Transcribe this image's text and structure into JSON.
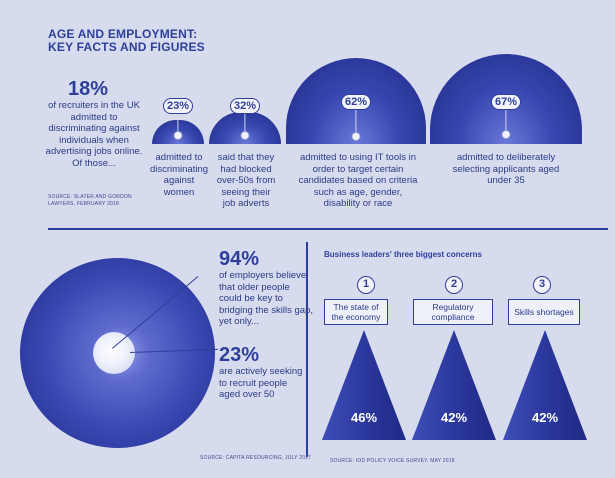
{
  "header": {
    "title_line1": "AGE AND EMPLOYMENT:",
    "title_line2": "KEY FACTS AND FIGURES"
  },
  "recruiters": {
    "stat": "18%",
    "description": "of recruiters in the UK admitted to discriminating against individuals when advertising jobs online. Of those...",
    "source": "SOURCE: SLATER AND GORDON LAWYERS, FEBRUARY 2018"
  },
  "recruiter_breakdown": [
    {
      "label": "23%",
      "value": 23,
      "caption": "admitted to discriminating against women"
    },
    {
      "label": "32%",
      "value": 32,
      "caption": "said that they had blocked over-50s from seeing their job adverts"
    },
    {
      "label": "62%",
      "value": 62,
      "caption": "admitted to using IT tools in order to target certain candidates based on criteria such as age, gender, disability or race"
    },
    {
      "label": "67%",
      "value": 67,
      "caption": "admitted to deliberately selecting applicants aged under 35"
    }
  ],
  "employers": {
    "stat1": "94%",
    "text1": "of employers believe that older people could be key to bridging the skills gap, yet only...",
    "stat2": "23%",
    "text2": "are actively seeking to recruit people aged over 50",
    "source": "SOURCE: CAPITA RESOURCING, JULY 2017"
  },
  "concerns": {
    "title": "Business leaders' three biggest concerns",
    "items": [
      {
        "number": "1",
        "label": "The state of the economy",
        "pct": "46%",
        "value": 46
      },
      {
        "number": "2",
        "label": "Regulatory compliance",
        "pct": "42%",
        "value": 42
      },
      {
        "number": "3",
        "label": "Skills shortages",
        "pct": "42%",
        "value": 42
      }
    ],
    "source": "SOURCE: IOD POLICY VOICE SURVEY, MAY 2018"
  },
  "colors": {
    "background": "#d7dbee",
    "primary": "#2e3f9b",
    "shape_dark": "#1f2a84",
    "shape_light": "#6a78d8"
  }
}
